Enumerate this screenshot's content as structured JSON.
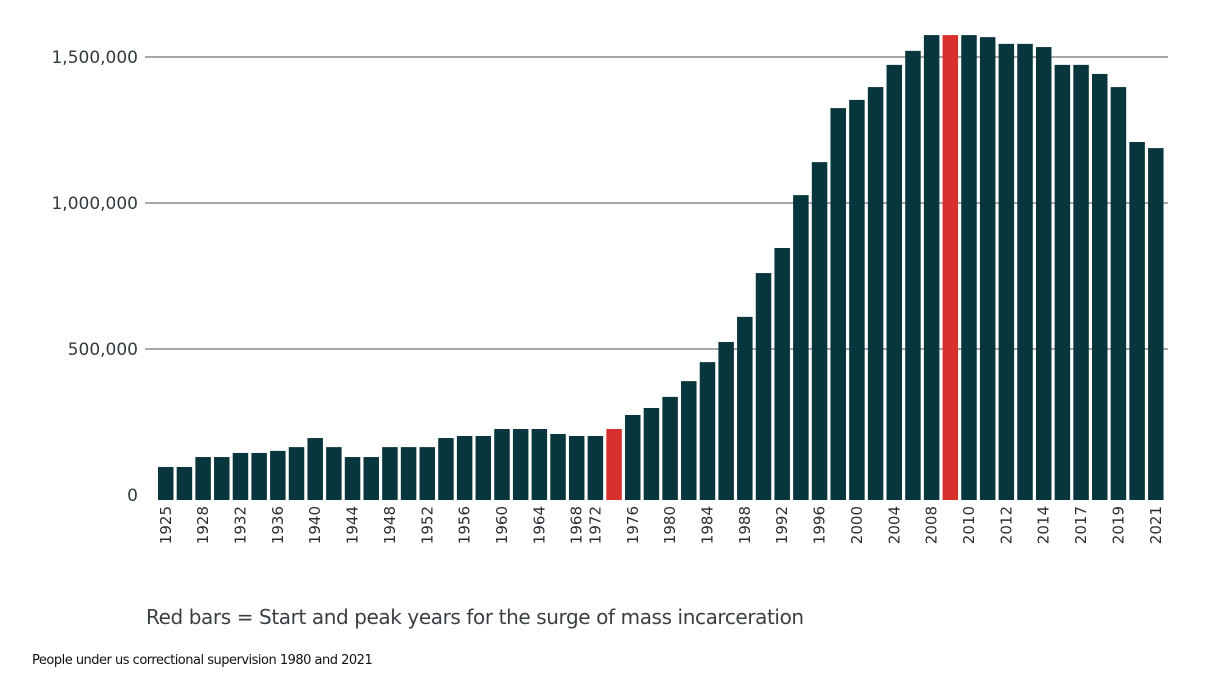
{
  "chart_data": {
    "type": "bar",
    "title": "",
    "xlabel": "",
    "ylabel": "",
    "ylim": [
      0,
      1600000
    ],
    "yticks": [
      0,
      500000,
      1000000,
      1500000
    ],
    "ytick_labels": [
      "0",
      "500,000",
      "1,000,000",
      "1,500,000"
    ],
    "grid": true,
    "colors": {
      "default": "#08363c",
      "highlight": "#d8302d",
      "grid": "#8a8a8a"
    },
    "values": [
      96000,
      96000,
      130000,
      130000,
      144000,
      144000,
      151000,
      164000,
      195000,
      164000,
      130000,
      130000,
      164000,
      164000,
      164000,
      195000,
      202000,
      202000,
      226000,
      226000,
      226000,
      209000,
      202000,
      202000,
      226000,
      274000,
      298000,
      336000,
      390000,
      455000,
      524000,
      610000,
      760000,
      846000,
      1027000,
      1140000,
      1325000,
      1353000,
      1397000,
      1473000,
      1521000,
      1575000,
      1575000,
      1575000,
      1568000,
      1545000,
      1545000,
      1534000,
      1473000,
      1473000,
      1442000,
      1397000,
      1209000,
      1188000
    ],
    "highlighted_bars": [
      25,
      43
    ],
    "tick_labels": [
      {
        "bar": 1,
        "label": "1925"
      },
      {
        "bar": 3,
        "label": "1928"
      },
      {
        "bar": 5,
        "label": "1932"
      },
      {
        "bar": 7,
        "label": "1936"
      },
      {
        "bar": 9,
        "label": "1940"
      },
      {
        "bar": 11,
        "label": "1944"
      },
      {
        "bar": 13,
        "label": "1948"
      },
      {
        "bar": 15,
        "label": "1952"
      },
      {
        "bar": 17,
        "label": "1956"
      },
      {
        "bar": 19,
        "label": "1960"
      },
      {
        "bar": 21,
        "label": "1964"
      },
      {
        "bar": 23,
        "label": "1968"
      },
      {
        "bar": 24,
        "label": "1972"
      },
      {
        "bar": 26,
        "label": "1976"
      },
      {
        "bar": 28,
        "label": "1980"
      },
      {
        "bar": 30,
        "label": "1984"
      },
      {
        "bar": 32,
        "label": "1988"
      },
      {
        "bar": 34,
        "label": "1992"
      },
      {
        "bar": 36,
        "label": "1996"
      },
      {
        "bar": 38,
        "label": "2000"
      },
      {
        "bar": 40,
        "label": "2004"
      },
      {
        "bar": 42,
        "label": "2008"
      },
      {
        "bar": 44,
        "label": "2010"
      },
      {
        "bar": 46,
        "label": "2012"
      },
      {
        "bar": 48,
        "label": "2014"
      },
      {
        "bar": 50,
        "label": "2017"
      },
      {
        "bar": 52,
        "label": "2019"
      },
      {
        "bar": 54,
        "label": "2021"
      }
    ],
    "annotations": [
      "Red bars = Start and peak years for the surge of mass incarceration"
    ]
  },
  "legend_note": "Red bars = Start and peak years for the surge of mass incarceration",
  "caption": "People under us correctional supervision 1980 and 2021"
}
